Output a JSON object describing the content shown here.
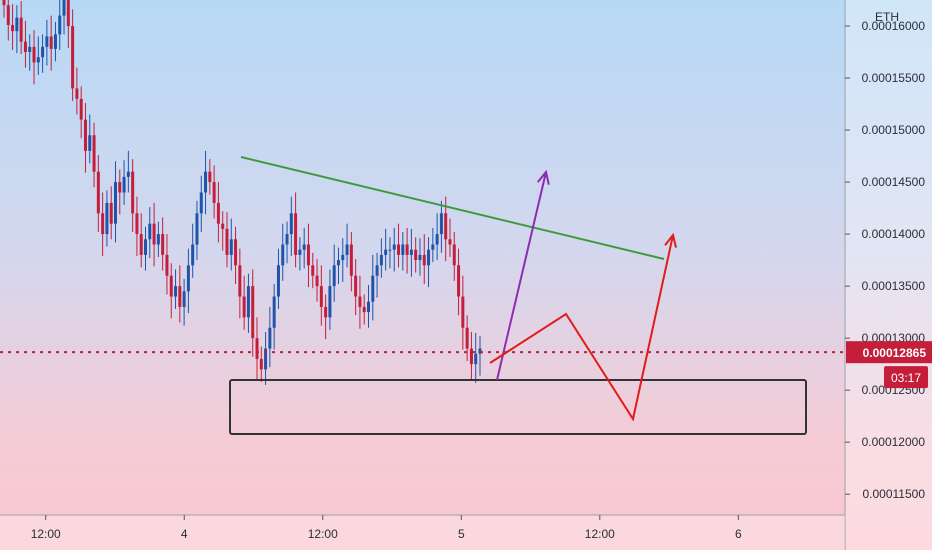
{
  "chart_data": {
    "type": "candlestick",
    "symbol_label": "ETH",
    "y_ticks": [
      "0.00011500",
      "0.00012000",
      "0.00012500",
      "0.00013000",
      "0.00013500",
      "0.00014000",
      "0.00014500",
      "0.00015000",
      "0.00015500",
      "0.00016000"
    ],
    "x_ticks": [
      {
        "label": "12:00",
        "x": 0.5
      },
      {
        "label": "4",
        "x": 1.0
      },
      {
        "label": "12:00",
        "x": 1.5
      },
      {
        "label": "5",
        "x": 2.0
      },
      {
        "label": "12:00",
        "x": 2.5
      },
      {
        "label": "6",
        "x": 3.0
      }
    ],
    "ylim": [
      0.000113,
      0.0001625
    ],
    "xlim": [
      0.335,
      3.385
    ],
    "current_price_label": "0.00012865",
    "current_price": 0.00012865,
    "countdown_label": "03:17",
    "colors": {
      "up": "#1f54a8",
      "down": "#c41e3a",
      "price_line": "#c41e3a",
      "trendline": "#3c9a3c",
      "arrow_purple": "#8e2cb0",
      "arrow_red": "#e21b1b",
      "box": "#333333"
    },
    "candles_close": [
      0.000162,
      0.0001601,
      0.0001595,
      0.0001608,
      0.0001585,
      0.0001575,
      0.000158,
      0.0001565,
      0.000157,
      0.000158,
      0.000159,
      0.0001578,
      0.0001592,
      0.000161,
      0.000164,
      0.00016,
      0.000154,
      0.000153,
      0.000151,
      0.000148,
      0.0001495,
      0.000146,
      0.000142,
      0.00014,
      0.000143,
      0.000141,
      0.000145,
      0.000144,
      0.0001455,
      0.000146,
      0.000142,
      0.00014,
      0.000138,
      0.0001395,
      0.000141,
      0.000139,
      0.00014,
      0.000138,
      0.000136,
      0.000134,
      0.000135,
      0.000133,
      0.0001345,
      0.000137,
      0.000139,
      0.000142,
      0.000144,
      0.000146,
      0.000145,
      0.000143,
      0.000141,
      0.0001405,
      0.000138,
      0.0001395,
      0.000137,
      0.000134,
      0.000132,
      0.000135,
      0.00013,
      0.000128,
      0.000127,
      0.000129,
      0.000131,
      0.000134,
      0.000137,
      0.000139,
      0.00014,
      0.000142,
      0.000138,
      0.0001385,
      0.000139,
      0.000137,
      0.000136,
      0.000135,
      0.000133,
      0.000132,
      0.000135,
      0.000137,
      0.0001375,
      0.000138,
      0.000139,
      0.000136,
      0.000134,
      0.000133,
      0.0001325,
      0.0001335,
      0.000136,
      0.000137,
      0.000138,
      0.0001385,
      0.0001385,
      0.000139,
      0.000138,
      0.000139,
      0.000138,
      0.0001385,
      0.0001375,
      0.000138,
      0.000137,
      0.0001385,
      0.000139,
      0.00014,
      0.000142,
      0.0001395,
      0.000139,
      0.000137,
      0.000134,
      0.000131,
      0.000129,
      0.0001275,
      0.0001285,
      0.000129
    ]
  }
}
